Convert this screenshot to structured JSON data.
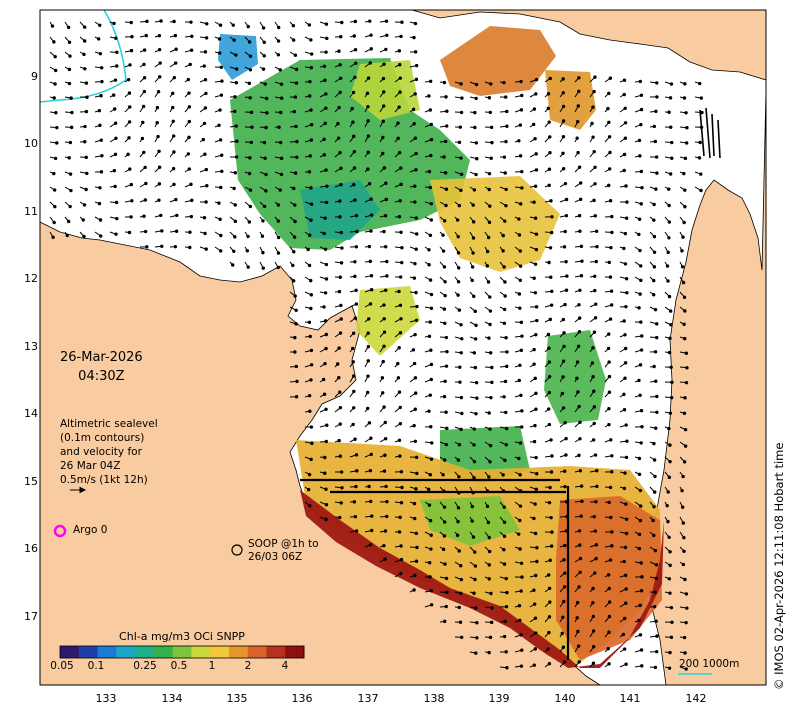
{
  "map": {
    "date": "26-Mar-2026",
    "time": "04:30Z",
    "legend_lines": [
      "Altimetric sealevel",
      "(0.1m contours)",
      "and velocity for",
      "26 Mar 04Z",
      "0.5m/s (1kt 12h)"
    ],
    "argo_label": "Argo 0",
    "soop_lines": [
      "SOOP @1h to",
      "26/03 06Z"
    ],
    "colorbar_title": "Chl-a mg/m3 OCi SNPP",
    "colorbar_ticks": [
      "0.05",
      "0.1",
      "0.25",
      "0.5",
      "1",
      "2",
      "4"
    ],
    "colorbar_colors": [
      "#2c1a6e",
      "#1f3fa8",
      "#1b7ad6",
      "#1aa7c8",
      "#1bb08a",
      "#32b04a",
      "#7cc43a",
      "#c8d83a",
      "#f0c83a",
      "#e8962a",
      "#d9622a",
      "#b8301e",
      "#8e0f10"
    ],
    "scale_label": "200  1000m",
    "copyright": "© IMOS 02-Apr-2026 12:11:08 Hobart time",
    "lat_ticks": [
      "9",
      "10",
      "11",
      "12",
      "13",
      "14",
      "15",
      "16",
      "17"
    ],
    "lon_ticks": [
      "133",
      "134",
      "135",
      "136",
      "137",
      "138",
      "139",
      "140",
      "141",
      "142"
    ],
    "land_color": "#f9cba0",
    "coast_color": "#000000",
    "argo_color": "#ff00ff",
    "bathy_color": "#29d1d9"
  }
}
